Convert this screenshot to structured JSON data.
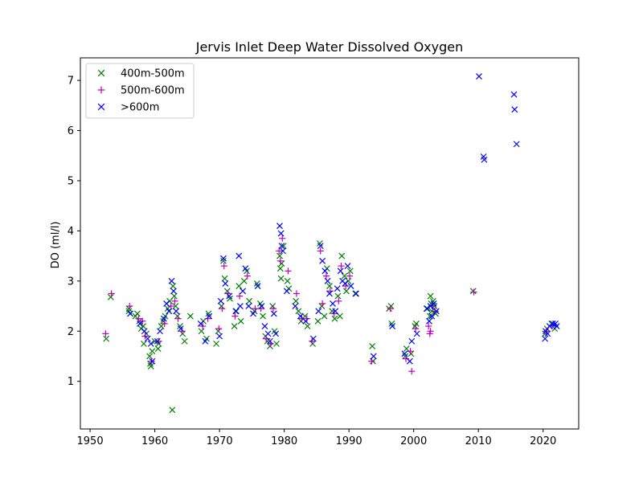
{
  "chart_data": {
    "type": "scatter",
    "title": "Jervis Inlet Deep Water Dissolved Oxygen",
    "xlabel": "",
    "ylabel": "DO (ml/l)",
    "xlim": [
      1948.5,
      2025.5
    ],
    "ylim": [
      0.05,
      7.45
    ],
    "xticks": [
      1950,
      1960,
      1970,
      1980,
      1990,
      2000,
      2010,
      2020
    ],
    "yticks": [
      1,
      2,
      3,
      4,
      5,
      6,
      7
    ],
    "grid": false,
    "legend_position": "top-left",
    "series": [
      {
        "name": "400m-500m",
        "marker": "x",
        "color": "#008000",
        "points": [
          [
            1952.5,
            1.85
          ],
          [
            1953.2,
            2.68
          ],
          [
            1956.0,
            2.45
          ],
          [
            1956.0,
            2.4
          ],
          [
            1957.0,
            2.3
          ],
          [
            1957.3,
            2.35
          ],
          [
            1957.6,
            2.2
          ],
          [
            1957.9,
            2.05
          ],
          [
            1958.2,
            2.1
          ],
          [
            1958.3,
            1.75
          ],
          [
            1958.7,
            1.95
          ],
          [
            1959.2,
            1.5
          ],
          [
            1959.3,
            1.35
          ],
          [
            1959.4,
            1.3
          ],
          [
            1959.6,
            1.6
          ],
          [
            1960.0,
            1.8
          ],
          [
            1960.5,
            1.65
          ],
          [
            1960.6,
            1.75
          ],
          [
            1961.0,
            2.1
          ],
          [
            1961.3,
            2.2
          ],
          [
            1961.6,
            2.3
          ],
          [
            1962.0,
            2.45
          ],
          [
            1962.3,
            2.6
          ],
          [
            1962.7,
            0.43
          ],
          [
            1962.8,
            2.9
          ],
          [
            1963.0,
            2.7
          ],
          [
            1963.2,
            2.5
          ],
          [
            1963.5,
            2.3
          ],
          [
            1963.9,
            2.1
          ],
          [
            1964.3,
            1.95
          ],
          [
            1964.6,
            1.8
          ],
          [
            1965.5,
            2.3
          ],
          [
            1967.2,
            2.0
          ],
          [
            1967.5,
            2.2
          ],
          [
            1968.0,
            1.85
          ],
          [
            1968.3,
            2.35
          ],
          [
            1969.5,
            1.75
          ],
          [
            1969.8,
            2.0
          ],
          [
            1970.3,
            2.5
          ],
          [
            1970.6,
            3.4
          ],
          [
            1970.8,
            3.05
          ],
          [
            1971.2,
            2.8
          ],
          [
            1971.6,
            2.65
          ],
          [
            1972.3,
            2.1
          ],
          [
            1972.6,
            2.4
          ],
          [
            1973.0,
            2.9
          ],
          [
            1973.3,
            2.2
          ],
          [
            1973.8,
            3.0
          ],
          [
            1974.2,
            3.2
          ],
          [
            1974.6,
            2.6
          ],
          [
            1975.4,
            2.4
          ],
          [
            1975.8,
            2.95
          ],
          [
            1976.3,
            2.55
          ],
          [
            1976.7,
            2.3
          ],
          [
            1977.1,
            1.9
          ],
          [
            1977.4,
            1.8
          ],
          [
            1977.8,
            1.7
          ],
          [
            1978.2,
            2.5
          ],
          [
            1978.5,
            2.0
          ],
          [
            1978.8,
            1.75
          ],
          [
            1979.3,
            3.5
          ],
          [
            1979.4,
            3.25
          ],
          [
            1979.5,
            3.05
          ],
          [
            1979.6,
            3.35
          ],
          [
            1979.9,
            3.7
          ],
          [
            1980.5,
            3.0
          ],
          [
            1980.7,
            2.85
          ],
          [
            1981.8,
            2.6
          ],
          [
            1982.2,
            2.4
          ],
          [
            1982.6,
            2.2
          ],
          [
            1983.2,
            2.3
          ],
          [
            1983.6,
            2.1
          ],
          [
            1984.4,
            1.75
          ],
          [
            1985.2,
            2.2
          ],
          [
            1985.5,
            3.75
          ],
          [
            1985.8,
            2.5
          ],
          [
            1986.2,
            2.3
          ],
          [
            1986.6,
            3.25
          ],
          [
            1987.0,
            2.9
          ],
          [
            1987.4,
            2.4
          ],
          [
            1987.8,
            2.25
          ],
          [
            1988.3,
            2.7
          ],
          [
            1988.6,
            2.3
          ],
          [
            1988.9,
            3.5
          ],
          [
            1989.3,
            3.1
          ],
          [
            1989.6,
            2.8
          ],
          [
            1989.9,
            3.0
          ],
          [
            1990.2,
            3.2
          ],
          [
            1991.0,
            2.75
          ],
          [
            1993.6,
            1.7
          ],
          [
            1993.7,
            1.4
          ],
          [
            1996.2,
            2.45
          ],
          [
            1996.5,
            2.5
          ],
          [
            1996.6,
            2.15
          ],
          [
            1998.7,
            1.5
          ],
          [
            1998.9,
            1.65
          ],
          [
            1999.6,
            1.55
          ],
          [
            2000.2,
            2.1
          ],
          [
            2000.4,
            2.15
          ],
          [
            2002.0,
            2.45
          ],
          [
            2002.5,
            2.3
          ],
          [
            2002.6,
            2.7
          ],
          [
            2002.7,
            2.55
          ],
          [
            2002.8,
            2.4
          ],
          [
            2003.0,
            2.6
          ],
          [
            2003.2,
            2.5
          ],
          [
            2003.4,
            2.35
          ],
          [
            2009.2,
            2.8
          ],
          [
            2020.3,
            1.95
          ],
          [
            2020.6,
            2.05
          ],
          [
            2021.3,
            2.15
          ],
          [
            2021.8,
            2.05
          ]
        ]
      },
      {
        "name": "500m-600m",
        "marker": "+",
        "color": "#bf00bf",
        "points": [
          [
            1952.4,
            1.95
          ],
          [
            1953.3,
            2.75
          ],
          [
            1956.1,
            2.5
          ],
          [
            1957.5,
            2.25
          ],
          [
            1958.1,
            2.2
          ],
          [
            1958.5,
            1.9
          ],
          [
            1959.5,
            1.4
          ],
          [
            1960.6,
            1.8
          ],
          [
            1961.5,
            2.15
          ],
          [
            1962.5,
            2.5
          ],
          [
            1963.1,
            2.6
          ],
          [
            1963.6,
            2.25
          ],
          [
            1964.2,
            2.0
          ],
          [
            1967.4,
            2.1
          ],
          [
            1968.2,
            2.25
          ],
          [
            1969.9,
            2.05
          ],
          [
            1970.4,
            2.45
          ],
          [
            1970.7,
            3.3
          ],
          [
            1971.3,
            2.75
          ],
          [
            1972.4,
            2.3
          ],
          [
            1973.1,
            2.7
          ],
          [
            1974.3,
            3.1
          ],
          [
            1975.5,
            2.45
          ],
          [
            1976.4,
            2.45
          ],
          [
            1977.2,
            1.85
          ],
          [
            1977.9,
            1.75
          ],
          [
            1978.3,
            2.45
          ],
          [
            1979.2,
            3.6
          ],
          [
            1979.4,
            3.4
          ],
          [
            1979.7,
            3.85
          ],
          [
            1980.6,
            3.2
          ],
          [
            1981.9,
            2.75
          ],
          [
            1982.7,
            2.25
          ],
          [
            1983.5,
            2.25
          ],
          [
            1984.3,
            1.8
          ],
          [
            1985.6,
            3.6
          ],
          [
            1985.9,
            2.55
          ],
          [
            1986.5,
            3.1
          ],
          [
            1987.1,
            2.8
          ],
          [
            1987.7,
            2.35
          ],
          [
            1988.4,
            2.6
          ],
          [
            1988.8,
            3.3
          ],
          [
            1989.5,
            2.9
          ],
          [
            1990.1,
            3.1
          ],
          [
            1993.5,
            1.4
          ],
          [
            1996.4,
            2.45
          ],
          [
            1998.8,
            1.45
          ],
          [
            1999.5,
            1.6
          ],
          [
            1999.7,
            1.2
          ],
          [
            2000.3,
            2.05
          ],
          [
            2002.3,
            2.1
          ],
          [
            2002.5,
            1.95
          ],
          [
            2002.6,
            2.0
          ],
          [
            2002.9,
            2.5
          ],
          [
            2003.3,
            2.4
          ],
          [
            2009.3,
            2.78
          ],
          [
            2020.5,
            2.0
          ],
          [
            2021.4,
            2.1
          ]
        ]
      },
      {
        "name": ">600m",
        "marker": "x",
        "color": "#0000ff",
        "points": [
          [
            1956.2,
            2.35
          ],
          [
            1957.7,
            2.15
          ],
          [
            1958.4,
            2.0
          ],
          [
            1958.9,
            1.85
          ],
          [
            1959.4,
            1.75
          ],
          [
            1959.6,
            1.4
          ],
          [
            1960.4,
            1.8
          ],
          [
            1960.8,
            2.0
          ],
          [
            1961.4,
            2.25
          ],
          [
            1961.8,
            2.55
          ],
          [
            1962.2,
            2.4
          ],
          [
            1962.6,
            3.0
          ],
          [
            1962.9,
            2.8
          ],
          [
            1963.3,
            2.4
          ],
          [
            1964.0,
            2.05
          ],
          [
            1967.1,
            2.15
          ],
          [
            1967.8,
            1.8
          ],
          [
            1968.4,
            2.3
          ],
          [
            1970.0,
            1.9
          ],
          [
            1970.2,
            2.6
          ],
          [
            1970.6,
            3.45
          ],
          [
            1970.9,
            2.95
          ],
          [
            1971.5,
            2.7
          ],
          [
            1972.5,
            2.4
          ],
          [
            1973.0,
            3.5
          ],
          [
            1973.2,
            2.5
          ],
          [
            1973.6,
            2.8
          ],
          [
            1974.0,
            3.25
          ],
          [
            1974.5,
            2.5
          ],
          [
            1975.2,
            2.35
          ],
          [
            1975.9,
            2.9
          ],
          [
            1976.5,
            2.5
          ],
          [
            1977.0,
            2.1
          ],
          [
            1977.5,
            1.95
          ],
          [
            1977.8,
            1.8
          ],
          [
            1978.4,
            2.35
          ],
          [
            1978.7,
            1.95
          ],
          [
            1979.3,
            4.1
          ],
          [
            1979.5,
            3.95
          ],
          [
            1979.6,
            3.7
          ],
          [
            1979.8,
            3.6
          ],
          [
            1980.4,
            2.8
          ],
          [
            1981.7,
            2.5
          ],
          [
            1982.5,
            2.3
          ],
          [
            1983.3,
            2.2
          ],
          [
            1984.5,
            1.85
          ],
          [
            1985.3,
            2.4
          ],
          [
            1985.6,
            3.7
          ],
          [
            1985.9,
            3.4
          ],
          [
            1986.3,
            3.2
          ],
          [
            1986.7,
            3.0
          ],
          [
            1987.0,
            2.75
          ],
          [
            1987.5,
            2.55
          ],
          [
            1987.9,
            2.4
          ],
          [
            1988.2,
            2.85
          ],
          [
            1988.7,
            3.2
          ],
          [
            1989.0,
            3.0
          ],
          [
            1989.4,
            2.95
          ],
          [
            1989.8,
            3.3
          ],
          [
            1990.3,
            2.9
          ],
          [
            1991.1,
            2.75
          ],
          [
            1993.8,
            1.5
          ],
          [
            1996.7,
            2.1
          ],
          [
            1998.6,
            1.55
          ],
          [
            1999.4,
            1.4
          ],
          [
            1999.7,
            1.8
          ],
          [
            2000.5,
            1.95
          ],
          [
            2002.1,
            2.45
          ],
          [
            2002.4,
            2.2
          ],
          [
            2002.6,
            2.5
          ],
          [
            2002.8,
            2.3
          ],
          [
            2003.1,
            2.55
          ],
          [
            2003.5,
            2.4
          ],
          [
            2010.1,
            7.08
          ],
          [
            2010.8,
            5.48
          ],
          [
            2010.9,
            5.42
          ],
          [
            2015.5,
            6.72
          ],
          [
            2015.6,
            6.42
          ],
          [
            2015.9,
            5.73
          ],
          [
            2020.3,
            1.85
          ],
          [
            2020.4,
            2.0
          ],
          [
            2020.7,
            1.95
          ],
          [
            2021.0,
            2.1
          ],
          [
            2021.5,
            2.15
          ],
          [
            2021.9,
            2.15
          ],
          [
            2022.1,
            2.1
          ]
        ]
      }
    ]
  }
}
